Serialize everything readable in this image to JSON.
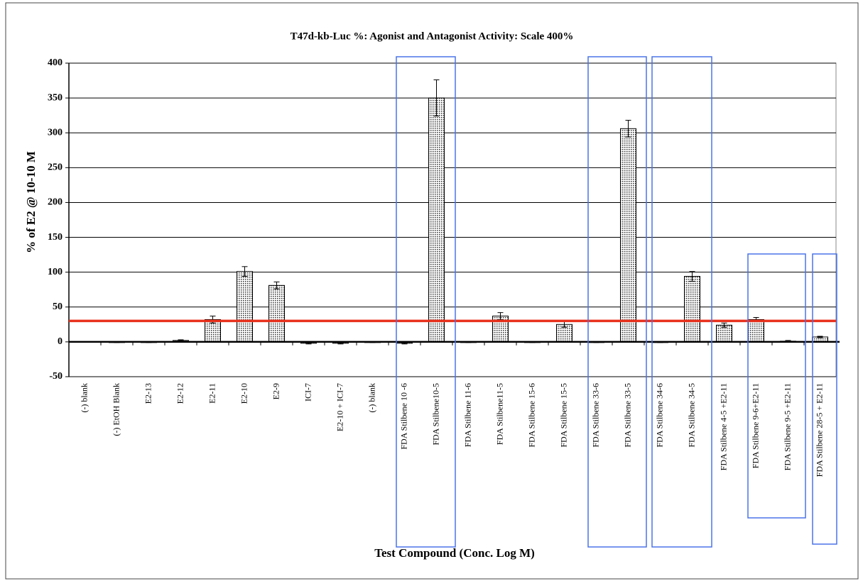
{
  "chart_data": {
    "type": "bar",
    "title": "T47d-kb-Luc %: Agonist and Antagonist Activity: Scale 400%",
    "xlabel": "Test Compound (Conc. Log M)",
    "ylabel": "% of E2 @ 10-10 M",
    "categories": [
      "(-) blank",
      "(-) EtOH Blank",
      "E2-13",
      "E2-12",
      "E2-11",
      "E2-10",
      "E2-9",
      "ICI-7",
      "E2-10 + ICI-7",
      "(-) blank",
      "FDA Stilbene 10 -6",
      "FDA Stilbene10-5",
      "FDA Stilbene 11-6",
      "FDA Stilbene11-5",
      "FDA Stilbene 15-6",
      "FDA Stilbene 15-5",
      "FDA Stilbene 33-6",
      "FDA Stilbene 33-5",
      "FDA Stilbene 34-6",
      "FDA Stilbene 34-5",
      "FDA Stilbene 4-5 +E2-11",
      "FDA Stilbene 9-6+E2-11",
      "FDA Stilbene 9-5 +E2-11",
      "FDA Stilbene 28-5 + E2-11"
    ],
    "values": [
      0,
      -1,
      -1,
      2,
      32,
      101,
      81,
      -2,
      -2,
      -1,
      -2,
      350,
      -1,
      37,
      -1,
      25,
      -1,
      306,
      -1,
      94,
      24,
      32,
      1,
      7
    ],
    "errors": [
      0,
      0,
      0,
      1,
      5,
      7,
      5,
      1,
      1,
      0,
      1,
      26,
      0,
      5,
      0,
      4,
      0,
      12,
      0,
      7,
      3,
      3,
      1,
      1
    ],
    "color": "#bbbbbb",
    "reference_line": 30,
    "reference_color": "#e8321e",
    "ylim": [
      -50,
      400
    ],
    "yticks": [
      -50,
      0,
      50,
      100,
      150,
      200,
      250,
      300,
      350,
      400
    ],
    "grid": true
  }
}
